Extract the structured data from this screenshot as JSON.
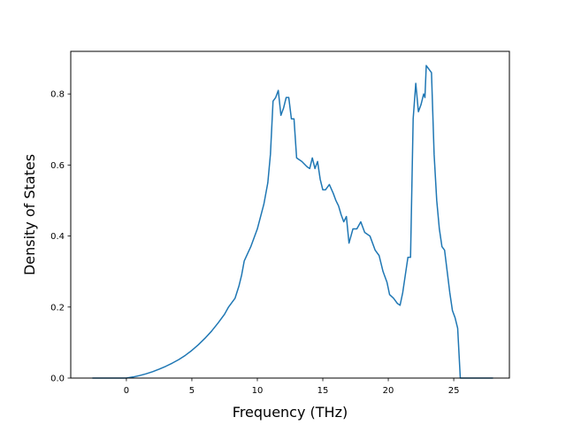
{
  "chart_data": {
    "type": "line",
    "title": "",
    "xlabel": "Frequency (THz)",
    "ylabel": "Density of States",
    "xlim": [
      -4.25,
      29.25
    ],
    "ylim": [
      0.0,
      0.92
    ],
    "grid": false,
    "legend": "none",
    "x_ticks": [
      0,
      5,
      10,
      15,
      20,
      25
    ],
    "x_tick_labels": [
      "0",
      "5",
      "10",
      "15",
      "20",
      "25"
    ],
    "y_ticks": [
      0.0,
      0.2,
      0.4,
      0.6,
      0.8
    ],
    "y_tick_labels": [
      "0.0",
      "0.2",
      "0.4",
      "0.6",
      "0.8"
    ],
    "series": [
      {
        "color": "#1f77b4",
        "x": [
          -2.6,
          0.0,
          0.5,
          1.0,
          1.5,
          2.0,
          2.5,
          3.0,
          3.5,
          4.0,
          4.5,
          5.0,
          5.5,
          6.0,
          6.5,
          7.0,
          7.5,
          7.8,
          8.0,
          8.3,
          8.6,
          8.8,
          9.0,
          9.5,
          10.0,
          10.5,
          10.8,
          11.0,
          11.2,
          11.4,
          11.6,
          11.8,
          12.0,
          12.2,
          12.4,
          12.6,
          12.8,
          13.0,
          13.4,
          13.8,
          14.0,
          14.2,
          14.4,
          14.6,
          14.8,
          15.0,
          15.2,
          15.5,
          15.8,
          16.0,
          16.2,
          16.4,
          16.6,
          16.8,
          17.0,
          17.3,
          17.6,
          17.9,
          18.2,
          18.6,
          19.0,
          19.3,
          19.6,
          19.9,
          20.1,
          20.4,
          20.7,
          20.9,
          21.1,
          21.3,
          21.5,
          21.7,
          21.9,
          22.1,
          22.3,
          22.5,
          22.7,
          22.8,
          22.9,
          23.1,
          23.3,
          23.5,
          23.7,
          23.9,
          24.1,
          24.3,
          24.5,
          24.7,
          24.9,
          25.1,
          25.3,
          25.5,
          25.6,
          25.7,
          26.0,
          27.0,
          28.0
        ],
        "y": [
          0.0,
          0.0,
          0.003,
          0.007,
          0.012,
          0.018,
          0.025,
          0.033,
          0.042,
          0.052,
          0.064,
          0.078,
          0.094,
          0.112,
          0.132,
          0.155,
          0.18,
          0.2,
          0.21,
          0.225,
          0.26,
          0.29,
          0.33,
          0.37,
          0.42,
          0.49,
          0.55,
          0.63,
          0.78,
          0.79,
          0.81,
          0.74,
          0.76,
          0.79,
          0.79,
          0.73,
          0.73,
          0.62,
          0.61,
          0.595,
          0.59,
          0.62,
          0.59,
          0.61,
          0.56,
          0.53,
          0.53,
          0.545,
          0.52,
          0.5,
          0.485,
          0.46,
          0.44,
          0.455,
          0.38,
          0.42,
          0.42,
          0.44,
          0.41,
          0.4,
          0.36,
          0.345,
          0.3,
          0.27,
          0.235,
          0.225,
          0.21,
          0.205,
          0.24,
          0.29,
          0.34,
          0.34,
          0.73,
          0.83,
          0.75,
          0.77,
          0.8,
          0.79,
          0.88,
          0.87,
          0.86,
          0.63,
          0.5,
          0.42,
          0.37,
          0.36,
          0.3,
          0.24,
          0.19,
          0.17,
          0.14,
          0.0,
          0.0,
          0.0,
          0.0,
          0.0,
          0.0
        ]
      }
    ]
  }
}
